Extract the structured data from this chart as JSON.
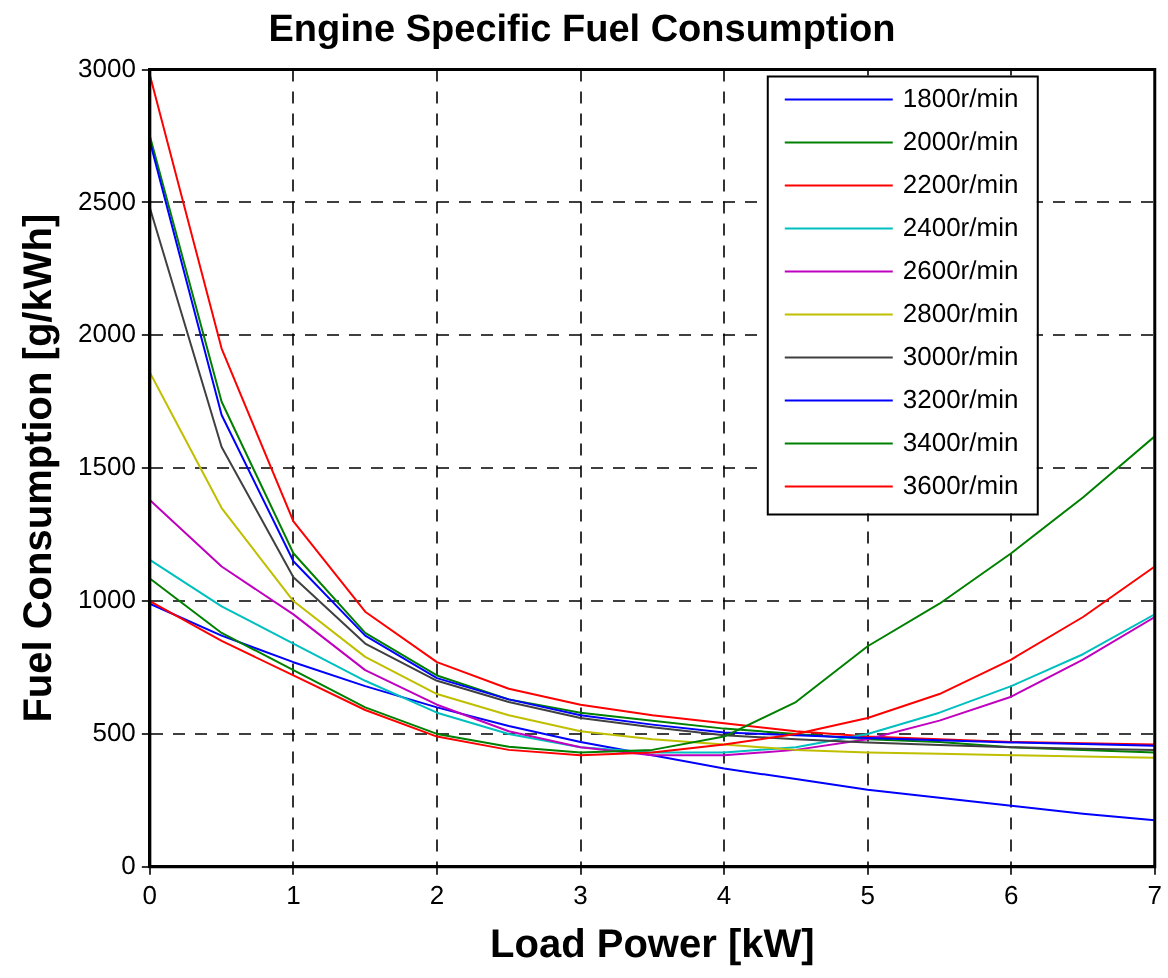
{
  "chart_data": {
    "type": "line",
    "title": "Engine Specific Fuel Consumption",
    "xlabel": "Load Power [kW]",
    "ylabel": "Fuel Consumption [g/kWh]",
    "x": [
      0,
      0.5,
      1,
      1.5,
      2,
      2.5,
      3,
      3.5,
      4,
      4.5,
      5,
      5.5,
      6,
      6.5,
      7
    ],
    "series": [
      {
        "name": "1800r/min",
        "color": "#0000ff",
        "values": [
          990,
          870,
          770,
          680,
          600,
          530,
          470,
          420,
          370,
          330,
          290,
          260,
          230,
          200,
          175
        ]
      },
      {
        "name": "2000r/min",
        "color": "#008000",
        "values": [
          2750,
          1750,
          1180,
          880,
          720,
          630,
          580,
          550,
          520,
          500,
          480,
          470,
          450,
          440,
          430
        ]
      },
      {
        "name": "2200r/min",
        "color": "#ff0000",
        "values": [
          2980,
          1950,
          1300,
          960,
          770,
          670,
          610,
          570,
          540,
          510,
          490,
          480,
          470,
          465,
          460
        ]
      },
      {
        "name": "2400r/min",
        "color": "#00bfbf",
        "values": [
          1155,
          980,
          840,
          700,
          580,
          500,
          450,
          430,
          430,
          450,
          500,
          580,
          680,
          800,
          950
        ]
      },
      {
        "name": "2600r/min",
        "color": "#bf00bf",
        "values": [
          1380,
          1130,
          950,
          740,
          610,
          510,
          450,
          420,
          420,
          440,
          480,
          550,
          640,
          780,
          940
        ]
      },
      {
        "name": "2800r/min",
        "color": "#bfbf00",
        "values": [
          1860,
          1350,
          1000,
          790,
          650,
          570,
          510,
          480,
          460,
          440,
          430,
          425,
          420,
          415,
          410
        ]
      },
      {
        "name": "3000r/min",
        "color": "#404040",
        "values": [
          2480,
          1580,
          1090,
          840,
          700,
          620,
          560,
          525,
          495,
          480,
          468,
          458,
          450,
          444,
          440
        ]
      },
      {
        "name": "3200r/min",
        "color": "#0000ff",
        "values": [
          2730,
          1700,
          1150,
          870,
          710,
          630,
          570,
          535,
          505,
          495,
          485,
          476,
          468,
          462,
          456
        ]
      },
      {
        "name": "3400r/min",
        "color": "#008000",
        "values": [
          1085,
          880,
          740,
          600,
          500,
          452,
          430,
          440,
          490,
          620,
          830,
          990,
          1180,
          1390,
          1620
        ]
      },
      {
        "name": "3600r/min",
        "color": "#ff0000",
        "values": [
          1000,
          850,
          720,
          590,
          490,
          440,
          420,
          430,
          460,
          500,
          560,
          650,
          780,
          940,
          1130
        ]
      }
    ],
    "xlim": [
      0,
      7
    ],
    "xticks": [
      0,
      1,
      2,
      3,
      4,
      5,
      6,
      7
    ],
    "ylim": [
      0,
      3000
    ],
    "yticks": [
      0,
      500,
      1000,
      1500,
      2000,
      2500,
      3000
    ],
    "grid": true,
    "legend": "top right",
    "marker": "none",
    "line_style": "solid"
  }
}
